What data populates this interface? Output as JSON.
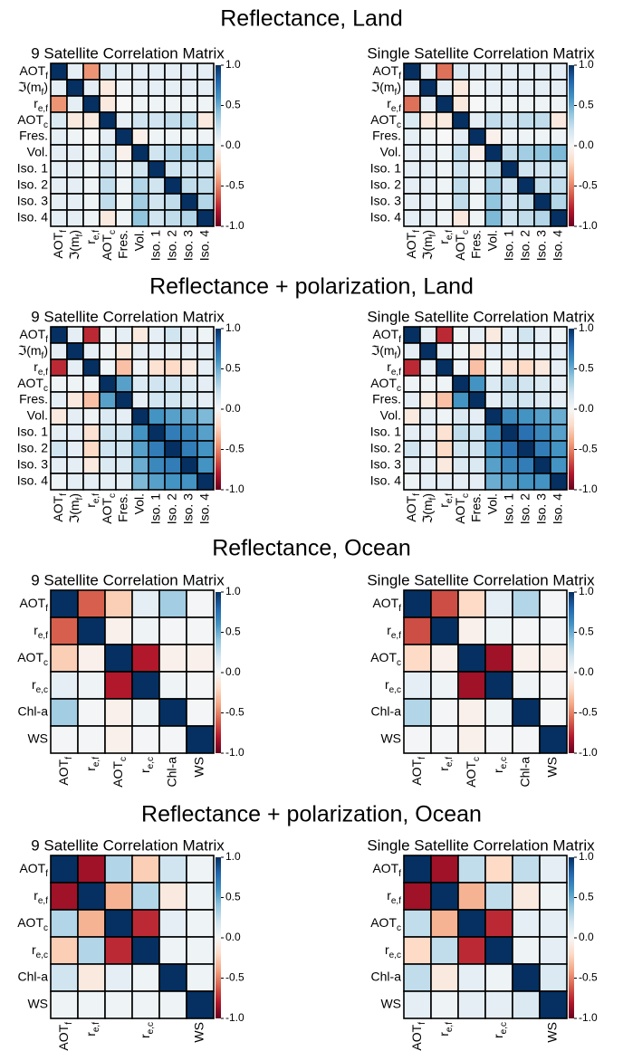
{
  "sections": [
    "Reflectance, Land",
    "Reflectance + polarization, Land",
    "Reflectance, Ocean",
    "Reflectance + polarization, Ocean"
  ],
  "chart_data": [
    {
      "type": "heatmap",
      "title": "9 Satellite Correlation Matrix",
      "colormap": "RdBu",
      "y_categories": [
        {
          "base": "AOT",
          "sub": "f"
        },
        {
          "base": "ℑ(m",
          "sub": "f",
          "tail": ")"
        },
        {
          "base": "r",
          "sub": "e,f"
        },
        {
          "base": "AOT",
          "sub": "c"
        },
        "Fres.",
        "Vol.",
        "Iso. 1",
        "Iso. 2",
        "Iso. 3",
        "Iso. 4"
      ],
      "x_categories": [
        {
          "base": "AOT",
          "sub": "f"
        },
        {
          "base": "ℑ(m",
          "sub": "f",
          "tail": ")"
        },
        {
          "base": "r",
          "sub": "e,f"
        },
        {
          "base": "AOT",
          "sub": "c"
        },
        "Fres.",
        "Vol.",
        "Iso. 1",
        "Iso. 2",
        "Iso. 3",
        "Iso. 4"
      ],
      "values": [
        [
          1,
          0.1,
          -0.45,
          0.15,
          0.1,
          0.1,
          0.1,
          0.1,
          0.1,
          0.1
        ],
        [
          0.1,
          1,
          0.1,
          -0.1,
          0.05,
          0.1,
          0.1,
          0.1,
          0.1,
          0.1
        ],
        [
          -0.45,
          0.1,
          1,
          -0.1,
          0,
          0.05,
          0.05,
          0.05,
          0.05,
          0.05
        ],
        [
          0.15,
          -0.1,
          -0.1,
          1,
          0.1,
          0.2,
          0.2,
          0.25,
          0.25,
          -0.1
        ],
        [
          0.1,
          0.05,
          0,
          0.1,
          1,
          -0.05,
          0.05,
          0.05,
          0.05,
          0.05
        ],
        [
          0.1,
          0.1,
          0.05,
          0.2,
          -0.05,
          1,
          0.2,
          0.3,
          0.35,
          0.4
        ],
        [
          0.1,
          0.1,
          0.05,
          0.2,
          0.05,
          0.2,
          1,
          0.2,
          0.2,
          0.2
        ],
        [
          0.1,
          0.1,
          0.05,
          0.25,
          0.05,
          0.3,
          0.2,
          1,
          0.25,
          0.25
        ],
        [
          0.1,
          0.1,
          0.05,
          0.25,
          0.05,
          0.35,
          0.2,
          0.25,
          1,
          0.3
        ],
        [
          0.1,
          0.1,
          0.05,
          -0.1,
          0.05,
          0.4,
          0.2,
          0.25,
          0.3,
          1
        ]
      ],
      "zlim": [
        -1,
        1
      ],
      "zticks": [
        {
          "value": 1,
          "label": "1.0"
        },
        0.5,
        {
          "value": 0,
          "label": "0.0"
        },
        -0.5,
        {
          "value": -1,
          "label": "-1.0"
        }
      ]
    },
    {
      "type": "heatmap",
      "title": "Single Satellite Correlation Matrix",
      "colormap": "RdBu",
      "y_categories": [
        {
          "base": "AOT",
          "sub": "f"
        },
        {
          "base": "ℑ(m",
          "sub": "f",
          "tail": ")"
        },
        {
          "base": "r",
          "sub": "e,f"
        },
        {
          "base": "AOT",
          "sub": "c"
        },
        "Fres.",
        "Vol.",
        "Iso. 1",
        "Iso. 2",
        "Iso. 3",
        "Iso. 4"
      ],
      "x_categories": [
        {
          "base": "AOT",
          "sub": "f"
        },
        {
          "base": "ℑ(m",
          "sub": "f",
          "tail": ")"
        },
        {
          "base": "r",
          "sub": "e,f"
        },
        {
          "base": "AOT",
          "sub": "c"
        },
        "Fres.",
        "Vol.",
        "Iso. 1",
        "Iso. 2",
        "Iso. 3",
        "Iso. 4"
      ],
      "values": [
        [
          1,
          0.1,
          -0.55,
          0.15,
          0.1,
          0.1,
          0.1,
          0.1,
          0.1,
          0.1
        ],
        [
          0.1,
          1,
          0.1,
          -0.1,
          0.05,
          0.1,
          0.1,
          0.1,
          0.1,
          0.1
        ],
        [
          -0.55,
          0.1,
          1,
          -0.1,
          0,
          0.05,
          0.05,
          0.05,
          0.05,
          0.05
        ],
        [
          0.15,
          -0.1,
          -0.1,
          1,
          0.1,
          0.25,
          0.2,
          0.25,
          0.25,
          -0.1
        ],
        [
          0.1,
          0.05,
          0,
          0.1,
          1,
          -0.05,
          0.05,
          0.05,
          0.05,
          0.05
        ],
        [
          0.1,
          0.1,
          0.05,
          0.25,
          -0.05,
          1,
          0.25,
          0.35,
          0.4,
          0.45
        ],
        [
          0.1,
          0.1,
          0.05,
          0.2,
          0.05,
          0.25,
          1,
          0.2,
          0.2,
          0.2
        ],
        [
          0.1,
          0.1,
          0.05,
          0.25,
          0.05,
          0.35,
          0.2,
          1,
          0.25,
          0.25
        ],
        [
          0.1,
          0.1,
          0.05,
          0.25,
          0.05,
          0.4,
          0.2,
          0.25,
          1,
          0.3
        ],
        [
          0.1,
          0.1,
          0.05,
          -0.1,
          0.05,
          0.45,
          0.2,
          0.25,
          0.3,
          1
        ]
      ],
      "zlim": [
        -1,
        1
      ],
      "zticks": [
        {
          "value": 1,
          "label": "1.0"
        },
        0.5,
        {
          "value": 0,
          "label": "0.0"
        },
        -0.5,
        {
          "value": -1,
          "label": "-1.0"
        }
      ]
    },
    {
      "type": "heatmap",
      "title": "9 Satellite Correlation Matrix",
      "colormap": "RdBu",
      "y_categories": [
        {
          "base": "AOT",
          "sub": "f"
        },
        {
          "base": "ℑ(m",
          "sub": "f",
          "tail": ")"
        },
        {
          "base": "r",
          "sub": "e,f"
        },
        {
          "base": "AOT",
          "sub": "c"
        },
        "Fres.",
        "Vol.",
        "Iso. 1",
        "Iso. 2",
        "Iso. 3",
        "Iso. 4"
      ],
      "x_categories": [
        {
          "base": "AOT",
          "sub": "f"
        },
        {
          "base": "ℑ(m",
          "sub": "f",
          "tail": ")"
        },
        {
          "base": "r",
          "sub": "e,f"
        },
        {
          "base": "AOT",
          "sub": "c"
        },
        "Fres.",
        "Vol.",
        "Iso. 1",
        "Iso. 2",
        "Iso. 3",
        "Iso. 4"
      ],
      "values": [
        [
          1,
          0.1,
          -0.75,
          0.05,
          0.1,
          -0.1,
          0.1,
          0.2,
          0.1,
          0.05
        ],
        [
          0.1,
          1,
          0.1,
          0.05,
          -0.1,
          0.1,
          0.1,
          0.1,
          0.1,
          0.1
        ],
        [
          -0.75,
          0.1,
          1,
          0.05,
          -0.3,
          0.05,
          -0.15,
          -0.2,
          -0.1,
          0.1
        ],
        [
          0.05,
          0.05,
          0.05,
          1,
          0.55,
          0.15,
          0.2,
          0.2,
          0.15,
          0.1
        ],
        [
          0.1,
          -0.1,
          -0.3,
          0.55,
          1,
          0.1,
          0.2,
          0.2,
          0.15,
          0.1
        ],
        [
          -0.1,
          0.1,
          0.05,
          0.15,
          0.1,
          1,
          0.6,
          0.55,
          0.5,
          0.45
        ],
        [
          0.1,
          0.1,
          -0.15,
          0.2,
          0.2,
          0.6,
          1,
          0.7,
          0.65,
          0.55
        ],
        [
          0.2,
          0.1,
          -0.2,
          0.2,
          0.2,
          0.55,
          0.7,
          1,
          0.7,
          0.6
        ],
        [
          0.1,
          0.1,
          -0.1,
          0.15,
          0.15,
          0.5,
          0.65,
          0.7,
          1,
          0.6
        ],
        [
          0.05,
          0.1,
          0.1,
          0.1,
          0.1,
          0.45,
          0.55,
          0.6,
          0.6,
          1
        ]
      ],
      "zlim": [
        -1,
        1
      ],
      "zticks": [
        {
          "value": 1,
          "label": "1.0"
        },
        0.5,
        {
          "value": 0,
          "label": "0.0"
        },
        -0.5,
        {
          "value": -1,
          "label": "-1.0"
        }
      ]
    },
    {
      "type": "heatmap",
      "title": "Single Satellite Correlation Matrix",
      "colormap": "RdBu",
      "y_categories": [
        {
          "base": "AOT",
          "sub": "f"
        },
        {
          "base": "ℑ(m",
          "sub": "f",
          "tail": ")"
        },
        {
          "base": "r",
          "sub": "e,f"
        },
        {
          "base": "AOT",
          "sub": "c"
        },
        "Fres.",
        "Vol.",
        "Iso. 1",
        "Iso. 2",
        "Iso. 3",
        "Iso. 4"
      ],
      "x_categories": [
        {
          "base": "AOT",
          "sub": "f"
        },
        {
          "base": "ℑ(m",
          "sub": "f",
          "tail": ")"
        },
        {
          "base": "r",
          "sub": "e,f"
        },
        {
          "base": "AOT",
          "sub": "c"
        },
        "Fres.",
        "Vol.",
        "Iso. 1",
        "Iso. 2",
        "Iso. 3",
        "Iso. 4"
      ],
      "values": [
        [
          1,
          0.1,
          -0.75,
          0.05,
          0.1,
          -0.1,
          0.1,
          0.2,
          0.1,
          0.05
        ],
        [
          0.1,
          1,
          0.1,
          0.05,
          -0.1,
          0.1,
          0.1,
          0.1,
          0.1,
          0.1
        ],
        [
          -0.75,
          0.1,
          1,
          0.05,
          -0.3,
          0.05,
          -0.15,
          -0.2,
          -0.1,
          0.1
        ],
        [
          0.05,
          0.05,
          0.05,
          1,
          0.6,
          0.15,
          0.25,
          0.2,
          0.15,
          0.1
        ],
        [
          0.1,
          -0.1,
          -0.3,
          0.6,
          1,
          0.1,
          0.2,
          0.2,
          0.15,
          0.1
        ],
        [
          -0.1,
          0.1,
          0.05,
          0.15,
          0.1,
          1,
          0.65,
          0.6,
          0.55,
          0.5
        ],
        [
          0.1,
          0.1,
          -0.15,
          0.25,
          0.2,
          0.65,
          1,
          0.75,
          0.65,
          0.55
        ],
        [
          0.2,
          0.1,
          -0.2,
          0.2,
          0.2,
          0.6,
          0.75,
          1,
          0.7,
          0.6
        ],
        [
          0.1,
          0.1,
          -0.1,
          0.15,
          0.15,
          0.55,
          0.65,
          0.7,
          1,
          0.6
        ],
        [
          0.05,
          0.1,
          0.1,
          0.1,
          0.1,
          0.5,
          0.55,
          0.6,
          0.6,
          1
        ]
      ],
      "zlim": [
        -1,
        1
      ],
      "zticks": [
        {
          "value": 1,
          "label": "1.0"
        },
        0.5,
        {
          "value": 0,
          "label": "0.0"
        },
        -0.5,
        {
          "value": -1,
          "label": "-1.0"
        }
      ]
    },
    {
      "type": "heatmap",
      "title": "9 Satellite Correlation Matrix",
      "colormap": "RdBu",
      "y_categories": [
        {
          "base": "AOT",
          "sub": "f"
        },
        {
          "base": "r",
          "sub": "e,f"
        },
        {
          "base": "AOT",
          "sub": "c"
        },
        {
          "base": "r",
          "sub": "e,c"
        },
        "Chl-a",
        "WS"
      ],
      "x_categories": [
        {
          "base": "AOT",
          "sub": "f"
        },
        {
          "base": "r",
          "sub": "e,f"
        },
        {
          "base": "AOT",
          "sub": "c"
        },
        {
          "base": "r",
          "sub": "e,c"
        },
        "Chl-a",
        "WS"
      ],
      "values": [
        [
          1,
          -0.6,
          -0.25,
          0.1,
          0.35,
          0.02
        ],
        [
          -0.6,
          1,
          -0.05,
          0.05,
          0.02,
          0.02
        ],
        [
          -0.25,
          -0.05,
          1,
          -0.8,
          -0.05,
          -0.05
        ],
        [
          0.1,
          0.05,
          -0.8,
          1,
          0.05,
          0.02
        ],
        [
          0.35,
          0.02,
          -0.05,
          0.05,
          1,
          0.02
        ],
        [
          0.02,
          0.02,
          -0.05,
          0.02,
          0.02,
          1
        ]
      ],
      "zlim": [
        -1,
        1
      ],
      "zticks": [
        {
          "value": 1,
          "label": "1.0"
        },
        0.5,
        {
          "value": 0,
          "label": "0.0"
        },
        -0.5,
        {
          "value": -1,
          "label": "-1.0"
        }
      ]
    },
    {
      "type": "heatmap",
      "title": "Single Satellite Correlation Matrix",
      "colormap": "RdBu",
      "y_categories": [
        {
          "base": "AOT",
          "sub": "f"
        },
        {
          "base": "r",
          "sub": "e,f"
        },
        {
          "base": "AOT",
          "sub": "c"
        },
        {
          "base": "r",
          "sub": "e,c"
        },
        "Chl-a",
        "WS"
      ],
      "x_categories": [
        {
          "base": "AOT",
          "sub": "f"
        },
        {
          "base": "r",
          "sub": "e,f"
        },
        {
          "base": "AOT",
          "sub": "c"
        },
        {
          "base": "r",
          "sub": "e,c"
        },
        "Chl-a",
        "WS"
      ],
      "values": [
        [
          1,
          -0.65,
          -0.2,
          0.1,
          0.3,
          0.02
        ],
        [
          -0.65,
          1,
          -0.05,
          0.05,
          0.02,
          0.02
        ],
        [
          -0.2,
          -0.05,
          1,
          -0.85,
          -0.05,
          -0.05
        ],
        [
          0.1,
          0.05,
          -0.85,
          1,
          0.05,
          0.02
        ],
        [
          0.3,
          0.02,
          -0.05,
          0.05,
          1,
          0.02
        ],
        [
          0.02,
          0.02,
          -0.05,
          0.02,
          0.02,
          1
        ]
      ],
      "zlim": [
        -1,
        1
      ],
      "zticks": [
        {
          "value": 1,
          "label": "1.0"
        },
        0.5,
        {
          "value": 0,
          "label": "0.0"
        },
        -0.5,
        {
          "value": -1,
          "label": "-1.0"
        }
      ]
    },
    {
      "type": "heatmap",
      "title": "9 Satellite Correlation Matrix",
      "colormap": "RdBu",
      "y_categories": [
        {
          "base": "AOT",
          "sub": "f"
        },
        {
          "base": "r",
          "sub": "e,f"
        },
        {
          "base": "AOT",
          "sub": "c"
        },
        {
          "base": "r",
          "sub": "e,c"
        },
        "Chl-a",
        "WS"
      ],
      "x_categories": [
        {
          "base": "AOT",
          "sub": "f"
        },
        {
          "base": "r",
          "sub": "e,f"
        },
        null,
        {
          "base": "r",
          "sub": "e,c"
        },
        null,
        "WS"
      ],
      "values": [
        [
          1,
          -0.85,
          0.3,
          -0.25,
          0.2,
          0.05
        ],
        [
          -0.85,
          1,
          -0.35,
          0.3,
          -0.1,
          0.05
        ],
        [
          0.3,
          -0.35,
          1,
          -0.75,
          0.1,
          0.05
        ],
        [
          -0.25,
          0.3,
          -0.75,
          1,
          0.05,
          0.05
        ],
        [
          0.2,
          -0.1,
          0.1,
          0.05,
          1,
          0.05
        ],
        [
          0.05,
          0.05,
          0.05,
          0.05,
          0.05,
          1
        ]
      ],
      "zlim": [
        -1,
        1
      ],
      "zticks": [
        {
          "value": 1,
          "label": "1.0"
        },
        0.5,
        {
          "value": 0,
          "label": "0.0"
        },
        -0.5,
        {
          "value": -1,
          "label": "-1.0"
        }
      ]
    },
    {
      "type": "heatmap",
      "title": "Single Satellite Correlation Matrix",
      "colormap": "RdBu",
      "y_categories": [
        {
          "base": "AOT",
          "sub": "f"
        },
        {
          "base": "r",
          "sub": "e,f"
        },
        {
          "base": "AOT",
          "sub": "c"
        },
        {
          "base": "r",
          "sub": "e,c"
        },
        "Chl-a",
        "WS"
      ],
      "x_categories": [
        {
          "base": "AOT",
          "sub": "f"
        },
        {
          "base": "r",
          "sub": "e,f"
        },
        null,
        {
          "base": "r",
          "sub": "e,c"
        },
        null,
        "WS"
      ],
      "values": [
        [
          1,
          -0.85,
          0.25,
          -0.2,
          0.25,
          0.1
        ],
        [
          -0.85,
          1,
          -0.35,
          0.25,
          -0.1,
          0.05
        ],
        [
          0.25,
          -0.35,
          1,
          -0.75,
          0.1,
          0.1
        ],
        [
          -0.2,
          0.25,
          -0.75,
          1,
          0.05,
          0.1
        ],
        [
          0.25,
          -0.1,
          0.1,
          0.05,
          1,
          0.15
        ],
        [
          0.1,
          0.05,
          0.1,
          0.1,
          0.15,
          1
        ]
      ],
      "zlim": [
        -1,
        1
      ],
      "zticks": [
        {
          "value": 1,
          "label": "1.0"
        },
        0.5,
        {
          "value": 0,
          "label": "0.0"
        },
        -0.5,
        {
          "value": -1,
          "label": "-1.0"
        }
      ]
    }
  ]
}
